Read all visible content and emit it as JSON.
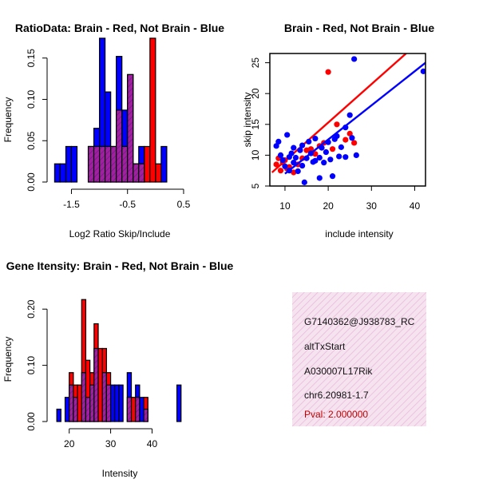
{
  "colors": {
    "red": "#ff0000",
    "blue": "#0000ff",
    "purple": "#a020a0",
    "hatch": "#7a1a8c",
    "infoBg": "#f6e3f0",
    "infoHatch": "#e9b8d8"
  },
  "chart_data": [
    {
      "id": "ratio",
      "type": "bar",
      "title": "RatioData: Brain - Red, Not Brain - Blue",
      "xlabel": "Log2 Ratio Skip/Include",
      "ylabel": "Frequency",
      "xlim": [
        -1.82,
        0.6
      ],
      "ylim": [
        0,
        0.17
      ],
      "xticks": [
        -1.5,
        -0.5,
        0.5
      ],
      "xtick_labels": [
        "-1.5",
        "-0.5",
        "0.5"
      ],
      "yticks": [
        0,
        0.05,
        0.1,
        0.15
      ],
      "ytick_labels": [
        "0.00",
        "0.05",
        "0.10",
        "0.15"
      ],
      "bin_start": -1.8,
      "bin_width": 0.1,
      "series": [
        {
          "name": "Not Brain",
          "color": "blue",
          "values": [
            0.022,
            0.022,
            0.043,
            0.043,
            0,
            0,
            0.043,
            0.065,
            0.174,
            0.109,
            0.043,
            0.152,
            0.087,
            0.13,
            0.022,
            0.043,
            0,
            0,
            0,
            0.043
          ]
        },
        {
          "name": "Brain",
          "color": "red",
          "values": [
            0,
            0,
            0,
            0,
            0,
            0,
            0.043,
            0.043,
            0.043,
            0.043,
            0.043,
            0.087,
            0.043,
            0.13,
            0.022,
            0.022,
            0.043,
            0.174,
            0.022,
            0
          ]
        }
      ]
    },
    {
      "id": "scatter",
      "type": "scatter",
      "title": "Brain - Red, Not Brain - Blue",
      "xlabel": "include intensity",
      "ylabel": "skip intensity",
      "xlim": [
        6.5,
        42.5
      ],
      "ylim": [
        5,
        26.5
      ],
      "xticks": [
        10,
        20,
        30,
        40
      ],
      "yticks": [
        5,
        10,
        15,
        20,
        25
      ],
      "series": [
        {
          "name": "Brain",
          "color": "red",
          "points": [
            [
              8,
              8.5
            ],
            [
              8.5,
              9.5
            ],
            [
              9,
              7.5
            ],
            [
              9.5,
              8.8
            ],
            [
              10,
              9.2
            ],
            [
              10.5,
              7.8
            ],
            [
              11,
              8.1
            ],
            [
              12,
              7.2
            ],
            [
              13,
              8.5
            ],
            [
              14,
              9.5
            ],
            [
              15,
              10.8
            ],
            [
              16,
              11
            ],
            [
              17,
              10.2
            ],
            [
              18,
              11.5
            ],
            [
              19,
              12
            ],
            [
              20,
              23.5
            ],
            [
              21,
              11
            ],
            [
              22,
              15
            ],
            [
              24,
              12.5
            ],
            [
              25,
              13.5
            ],
            [
              26,
              12
            ]
          ],
          "fit": [
            [
              7,
              7.2
            ],
            [
              38,
              26.5
            ]
          ]
        },
        {
          "name": "Not Brain",
          "color": "blue",
          "points": [
            [
              8,
              11.5
            ],
            [
              8.5,
              12.2
            ],
            [
              9,
              10
            ],
            [
              9.5,
              9.2
            ],
            [
              10,
              8.2
            ],
            [
              10.5,
              13.3
            ],
            [
              11,
              9.7
            ],
            [
              11,
              7.5
            ],
            [
              11.5,
              10.3
            ],
            [
              12,
              11.2
            ],
            [
              12,
              8.8
            ],
            [
              12.5,
              9.6
            ],
            [
              13,
              7.4
            ],
            [
              13.5,
              10.8
            ],
            [
              14,
              11.6
            ],
            [
              14,
              8.3
            ],
            [
              14.5,
              5.6
            ],
            [
              15,
              9.5
            ],
            [
              15.5,
              12.2
            ],
            [
              16,
              10.3
            ],
            [
              16.5,
              8.9
            ],
            [
              17,
              12.7
            ],
            [
              17,
              9.1
            ],
            [
              18,
              9.6
            ],
            [
              18,
              6.3
            ],
            [
              18.5,
              11.2
            ],
            [
              19,
              8.8
            ],
            [
              19.5,
              10.5
            ],
            [
              20,
              12.1
            ],
            [
              20.5,
              9.3
            ],
            [
              21,
              6.6
            ],
            [
              21.5,
              12.6
            ],
            [
              22,
              13.1
            ],
            [
              22.5,
              9.8
            ],
            [
              23,
              11.3
            ],
            [
              24,
              14.5
            ],
            [
              24,
              9.7
            ],
            [
              25,
              16.5
            ],
            [
              25.5,
              12.8
            ],
            [
              26,
              25.6
            ],
            [
              26.5,
              10
            ],
            [
              42,
              23.6
            ]
          ],
          "fit": [
            [
              10,
              7
            ],
            [
              42.5,
              25
            ]
          ]
        }
      ]
    },
    {
      "id": "intensity",
      "type": "bar",
      "title": "Gene Itensity: Brain - Red, Not Brain - Blue",
      "xlabel": "Intensity",
      "ylabel": "Frequency",
      "xlim": [
        16.2,
        48.2
      ],
      "ylim": [
        0,
        0.25
      ],
      "xticks": [
        20,
        30,
        40
      ],
      "xtick_labels": [
        "20",
        "30",
        "40"
      ],
      "yticks": [
        0,
        0.1,
        0.2
      ],
      "ytick_labels": [
        "0.00",
        "0.10",
        "0.20"
      ],
      "bin_start": 17,
      "bin_width": 1,
      "series": [
        {
          "name": "Not Brain",
          "color": "blue",
          "values": [
            0.022,
            0,
            0.043,
            0.065,
            0.043,
            0,
            0.087,
            0.043,
            0.065,
            0.13,
            0,
            0.087,
            0.065,
            0.065,
            0.065,
            0.065,
            0,
            0.087,
            0,
            0.065,
            0.043,
            0.022,
            0,
            0,
            0,
            0,
            0,
            0,
            0,
            0.065
          ]
        },
        {
          "name": "Brain",
          "color": "red",
          "values": [
            0,
            0,
            0,
            0.087,
            0.065,
            0.065,
            0.217,
            0.109,
            0.087,
            0.174,
            0.13,
            0.13,
            0.087,
            0,
            0,
            0,
            0,
            0.043,
            0.043,
            0.043,
            0,
            0.043,
            0,
            0,
            0,
            0,
            0,
            0,
            0,
            0
          ]
        }
      ]
    }
  ],
  "info_panel": {
    "lines": [
      "G7140362@J938783_RC",
      "altTxStart",
      "A030007L17Rik",
      "chr6.20981-1.7"
    ],
    "pval": "Pval: 2.000000"
  }
}
